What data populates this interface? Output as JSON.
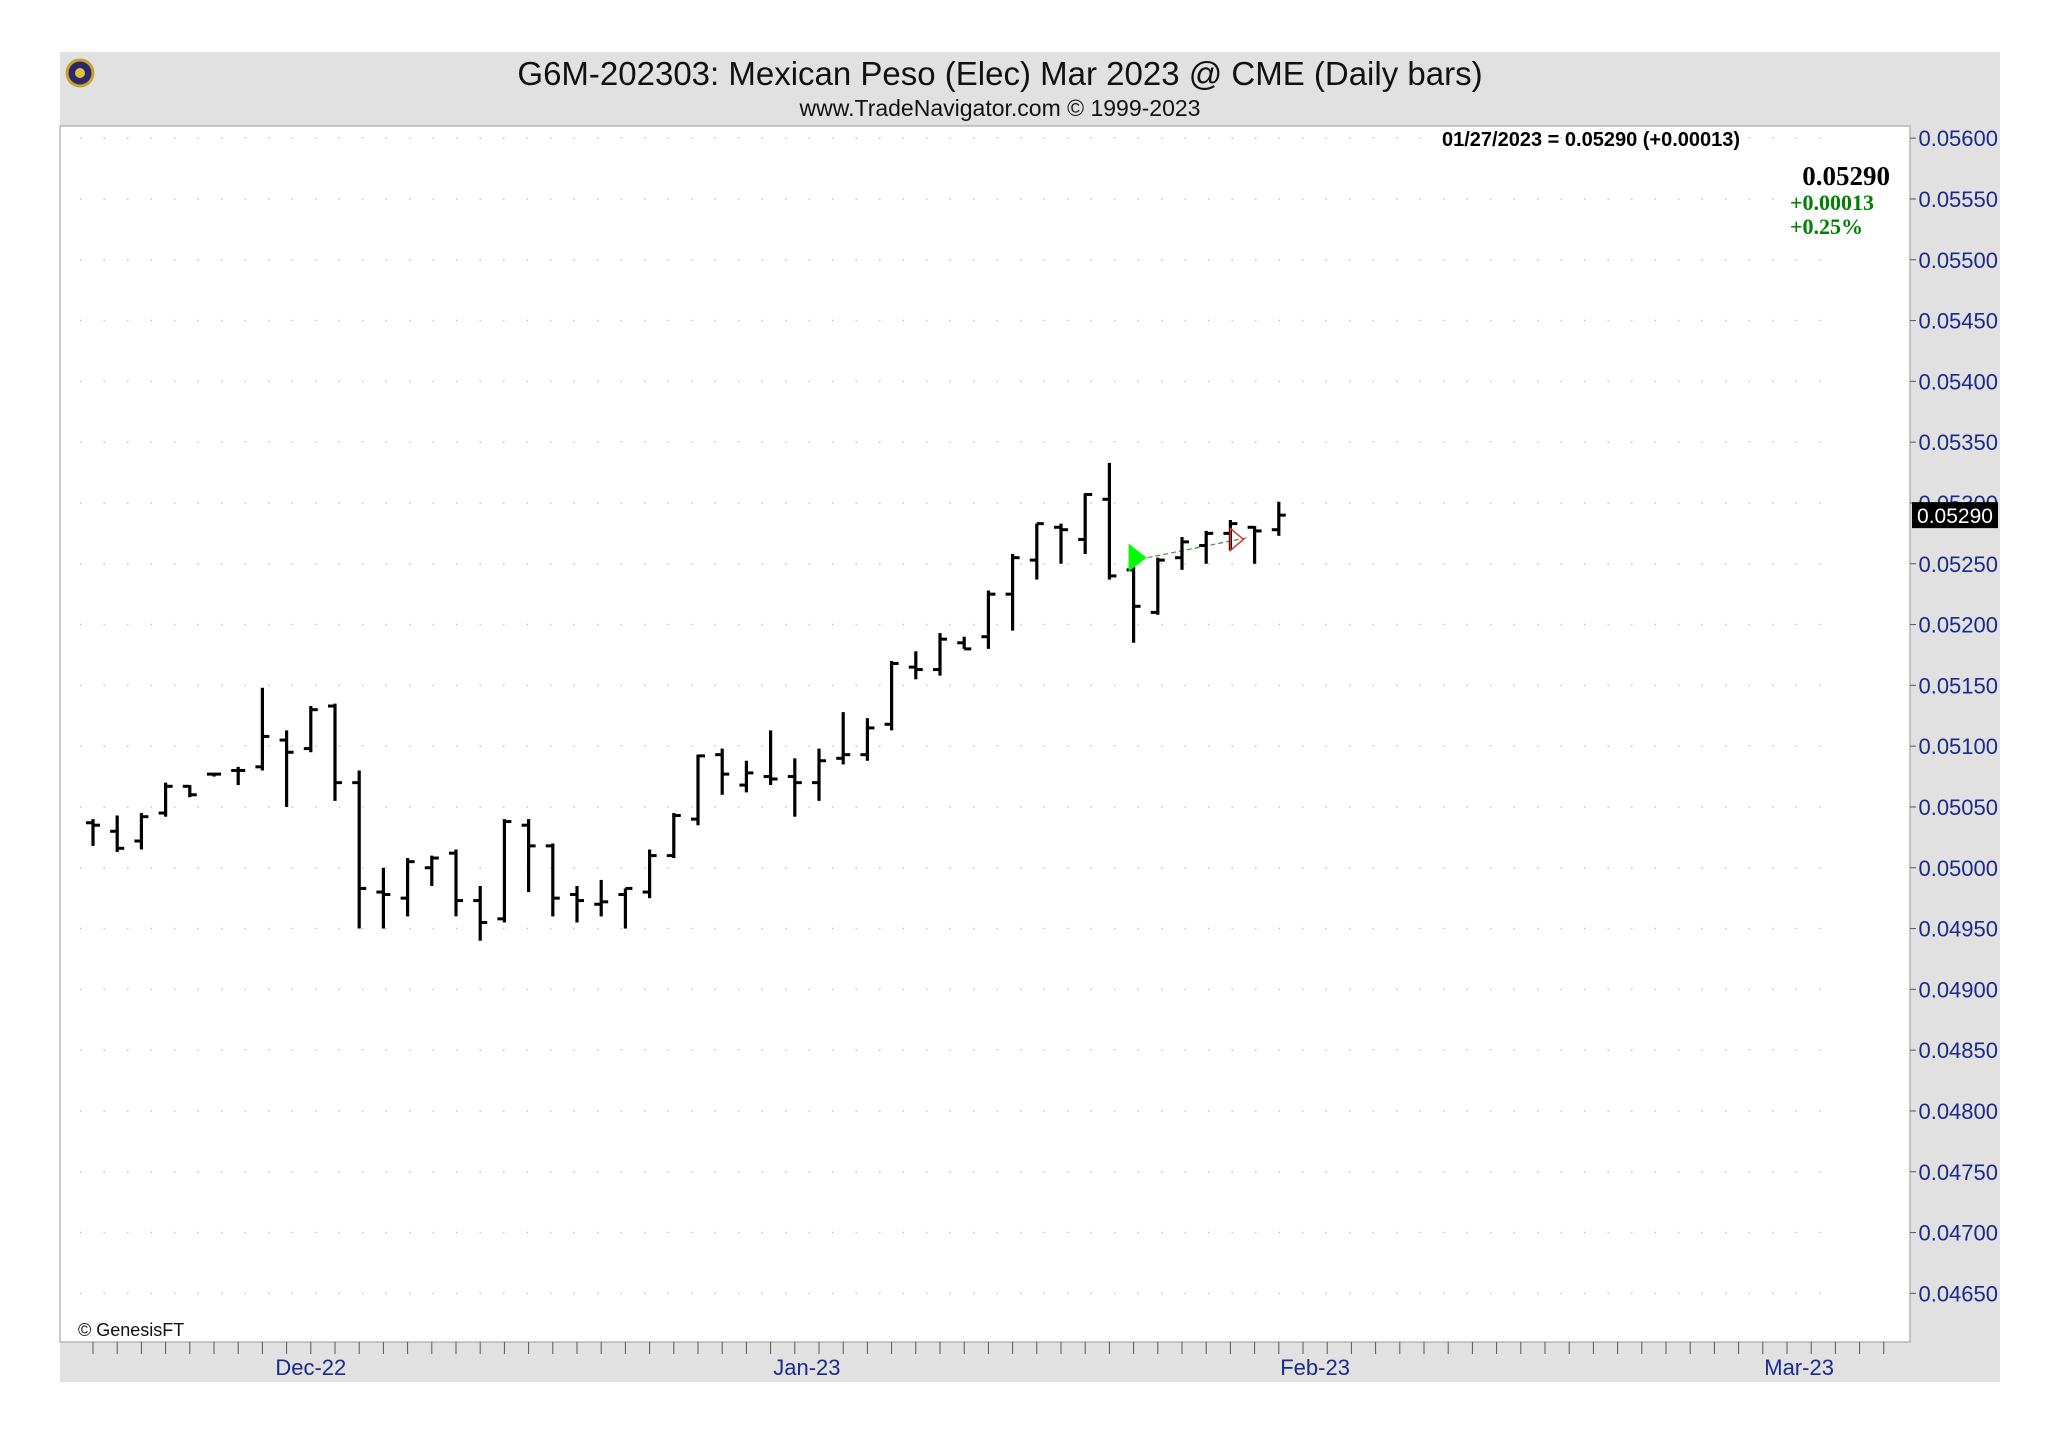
{
  "header": {
    "title": "G6M-202303:  Mexican Peso (Elec) Mar 2023 @ CME  (Daily bars)",
    "subtitle": "www.TradeNavigator.com © 1999-2023"
  },
  "info": {
    "date_line": "01/27/2023 = 0.05290 (+0.00013)",
    "last_price": "0.05290",
    "net_change": "+0.00013",
    "pct_change": "+0.25%"
  },
  "footer": {
    "copyright": "© GenesisFT"
  },
  "colors": {
    "header_bg": "#e1e1e1",
    "bar": "#000000",
    "tick_label": "#1a2a8c",
    "change_green": "#008000",
    "arrow_green": "#00ff00",
    "dotted_grid": "#c8c8c8"
  },
  "chart_data": {
    "type": "ohlc",
    "title": "G6M-202303:  Mexican Peso (Elec) Mar 2023 @ CME  (Daily bars)",
    "ylim": [
      0.0461,
      0.0561
    ],
    "grid": "dotted",
    "y_ticks": [
      "0.05600",
      "0.05550",
      "0.05500",
      "0.05450",
      "0.05400",
      "0.05350",
      "0.05300",
      "0.05250",
      "0.05200",
      "0.05150",
      "0.05100",
      "0.05050",
      "0.05000",
      "0.04950",
      "0.04900",
      "0.04850",
      "0.04800",
      "0.04750",
      "0.04700",
      "0.04650"
    ],
    "x_labels": [
      {
        "label": "Dec-22",
        "slot": 9
      },
      {
        "label": "Jan-23",
        "slot": 29.5
      },
      {
        "label": "Feb-23",
        "slot": 50.5
      },
      {
        "label": "Mar-23",
        "slot": 70.5
      }
    ],
    "last_price_marker": "0.05290",
    "bars": [
      {
        "x": 0,
        "o": 0.05037,
        "h": 0.0504,
        "l": 0.05018,
        "c": 0.05035
      },
      {
        "x": 1,
        "o": 0.0503,
        "h": 0.05043,
        "l": 0.05013,
        "c": 0.05016
      },
      {
        "x": 2,
        "o": 0.05022,
        "h": 0.05045,
        "l": 0.05015,
        "c": 0.05042
      },
      {
        "x": 3,
        "o": 0.05045,
        "h": 0.0507,
        "l": 0.05042,
        "c": 0.05067
      },
      {
        "x": 4,
        "o": 0.05067,
        "h": 0.05068,
        "l": 0.05058,
        "c": 0.0506
      },
      {
        "x": 5,
        "o": 0.05077,
        "h": 0.05078,
        "l": 0.05075,
        "c": 0.05077
      },
      {
        "x": 6,
        "o": 0.0508,
        "h": 0.05083,
        "l": 0.05068,
        "c": 0.0508
      },
      {
        "x": 7,
        "o": 0.05083,
        "h": 0.05148,
        "l": 0.0508,
        "c": 0.05108
      },
      {
        "x": 8,
        "o": 0.05105,
        "h": 0.05113,
        "l": 0.0505,
        "c": 0.05095
      },
      {
        "x": 9,
        "o": 0.05098,
        "h": 0.05133,
        "l": 0.05095,
        "c": 0.0513
      },
      {
        "x": 10,
        "o": 0.05133,
        "h": 0.05135,
        "l": 0.05055,
        "c": 0.0507
      },
      {
        "x": 11,
        "o": 0.0507,
        "h": 0.0508,
        "l": 0.0495,
        "c": 0.04983
      },
      {
        "x": 12,
        "o": 0.0498,
        "h": 0.05,
        "l": 0.0495,
        "c": 0.04978
      },
      {
        "x": 13,
        "o": 0.04975,
        "h": 0.05008,
        "l": 0.0496,
        "c": 0.05005
      },
      {
        "x": 14,
        "o": 0.05,
        "h": 0.0501,
        "l": 0.04985,
        "c": 0.05008
      },
      {
        "x": 15,
        "o": 0.05012,
        "h": 0.05015,
        "l": 0.0496,
        "c": 0.04973
      },
      {
        "x": 16,
        "o": 0.04973,
        "h": 0.04985,
        "l": 0.0494,
        "c": 0.04955
      },
      {
        "x": 17,
        "o": 0.04958,
        "h": 0.0504,
        "l": 0.04955,
        "c": 0.05038
      },
      {
        "x": 18,
        "o": 0.05035,
        "h": 0.0504,
        "l": 0.0498,
        "c": 0.05018
      },
      {
        "x": 19,
        "o": 0.05018,
        "h": 0.0502,
        "l": 0.0496,
        "c": 0.04975
      },
      {
        "x": 20,
        "o": 0.04978,
        "h": 0.04985,
        "l": 0.04955,
        "c": 0.04973
      },
      {
        "x": 21,
        "o": 0.0497,
        "h": 0.0499,
        "l": 0.0496,
        "c": 0.04972
      },
      {
        "x": 22,
        "o": 0.04978,
        "h": 0.04983,
        "l": 0.0495,
        "c": 0.04983
      },
      {
        "x": 23,
        "o": 0.0498,
        "h": 0.05015,
        "l": 0.04975,
        "c": 0.0501
      },
      {
        "x": 24,
        "o": 0.0501,
        "h": 0.05045,
        "l": 0.05008,
        "c": 0.05043
      },
      {
        "x": 25,
        "o": 0.0504,
        "h": 0.05093,
        "l": 0.05035,
        "c": 0.05092
      },
      {
        "x": 26,
        "o": 0.05093,
        "h": 0.05098,
        "l": 0.0506,
        "c": 0.05077
      },
      {
        "x": 27,
        "o": 0.05068,
        "h": 0.05088,
        "l": 0.05062,
        "c": 0.05078
      },
      {
        "x": 28,
        "o": 0.05075,
        "h": 0.05113,
        "l": 0.05068,
        "c": 0.05073
      },
      {
        "x": 29,
        "o": 0.05075,
        "h": 0.0509,
        "l": 0.05042,
        "c": 0.0507
      },
      {
        "x": 30,
        "o": 0.0507,
        "h": 0.05098,
        "l": 0.05055,
        "c": 0.05088
      },
      {
        "x": 31,
        "o": 0.0509,
        "h": 0.05128,
        "l": 0.05085,
        "c": 0.05093
      },
      {
        "x": 32,
        "o": 0.05093,
        "h": 0.05123,
        "l": 0.05088,
        "c": 0.05115
      },
      {
        "x": 33,
        "o": 0.05118,
        "h": 0.0517,
        "l": 0.05113,
        "c": 0.05168
      },
      {
        "x": 34,
        "o": 0.05165,
        "h": 0.05178,
        "l": 0.05155,
        "c": 0.05163
      },
      {
        "x": 35,
        "o": 0.05163,
        "h": 0.05193,
        "l": 0.05158,
        "c": 0.05188
      },
      {
        "x": 36,
        "o": 0.05185,
        "h": 0.0519,
        "l": 0.0518,
        "c": 0.0518
      },
      {
        "x": 37,
        "o": 0.0519,
        "h": 0.05228,
        "l": 0.0518,
        "c": 0.05225
      },
      {
        "x": 38,
        "o": 0.05225,
        "h": 0.05258,
        "l": 0.05195,
        "c": 0.05255
      },
      {
        "x": 39,
        "o": 0.05253,
        "h": 0.05283,
        "l": 0.05237,
        "c": 0.05283
      },
      {
        "x": 40,
        "o": 0.0528,
        "h": 0.05283,
        "l": 0.0525,
        "c": 0.05278
      },
      {
        "x": 41,
        "o": 0.0527,
        "h": 0.05308,
        "l": 0.05258,
        "c": 0.05307
      },
      {
        "x": 42,
        "o": 0.05303,
        "h": 0.05333,
        "l": 0.05237,
        "c": 0.0524
      },
      {
        "x": 43,
        "o": 0.05245,
        "h": 0.0525,
        "l": 0.05185,
        "c": 0.05215
      },
      {
        "x": 44,
        "o": 0.0521,
        "h": 0.05255,
        "l": 0.05208,
        "c": 0.05253
      },
      {
        "x": 45,
        "o": 0.05255,
        "h": 0.05272,
        "l": 0.05245,
        "c": 0.05268
      },
      {
        "x": 46,
        "o": 0.05265,
        "h": 0.05277,
        "l": 0.0525,
        "c": 0.05275
      },
      {
        "x": 47,
        "o": 0.05275,
        "h": 0.05286,
        "l": 0.05261,
        "c": 0.05283
      },
      {
        "x": 48,
        "o": 0.0528,
        "h": 0.05281,
        "l": 0.0525,
        "c": 0.05277
      },
      {
        "x": 49,
        "o": 0.05278,
        "h": 0.05301,
        "l": 0.05273,
        "c": 0.0529
      }
    ],
    "markers": [
      {
        "type": "green-arrow",
        "bar": 43,
        "value": 0.05255
      },
      {
        "type": "red-arrow-outline",
        "bar": 47,
        "value": 0.0527
      }
    ]
  }
}
